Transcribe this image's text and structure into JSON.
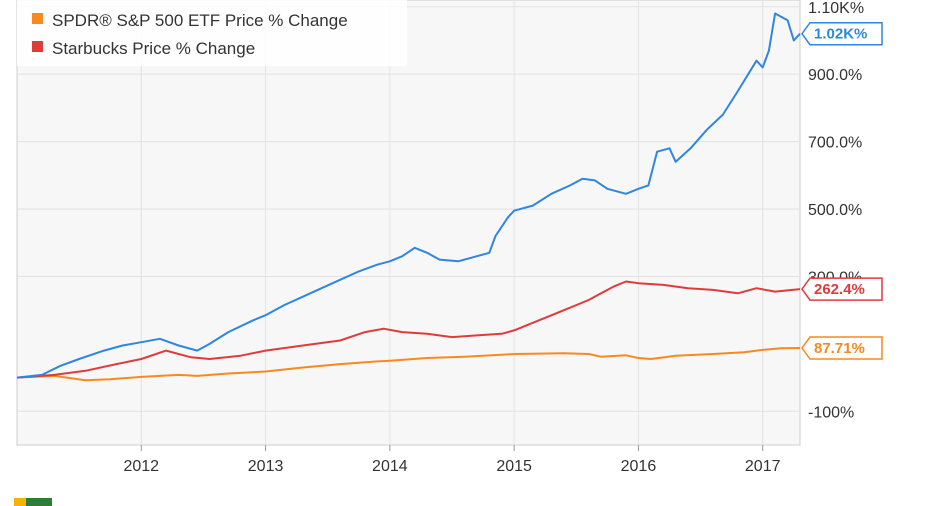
{
  "chart_data": {
    "type": "line",
    "title": "",
    "xlabel": "",
    "ylabel": "",
    "x_ticks": [
      {
        "label": "2012",
        "year": 2012.0
      },
      {
        "label": "2013",
        "year": 2013.0
      },
      {
        "label": "2014",
        "year": 2014.0
      },
      {
        "label": "2015",
        "year": 2015.0
      },
      {
        "label": "2016",
        "year": 2016.0
      },
      {
        "label": "2017",
        "year": 2017.0
      }
    ],
    "y_ticks": [
      {
        "label": "1.10K%",
        "value": 1100
      },
      {
        "label": "900.0%",
        "value": 900
      },
      {
        "label": "700.0%",
        "value": 700
      },
      {
        "label": "500.0%",
        "value": 500
      },
      {
        "label": "300.0%",
        "value": 300
      },
      {
        "label": "-100%",
        "value": -100
      }
    ],
    "xlim": [
      2011.0,
      2017.3
    ],
    "ylim": [
      -200,
      1120
    ],
    "grid": true,
    "legend_position": "top-left",
    "series": [
      {
        "name": "",
        "color": "#2f86e0",
        "end_label": "1.02K%",
        "points": [
          [
            2011.0,
            0
          ],
          [
            2011.2,
            8
          ],
          [
            2011.35,
            35
          ],
          [
            2011.5,
            55
          ],
          [
            2011.7,
            80
          ],
          [
            2011.85,
            95
          ],
          [
            2012.0,
            105
          ],
          [
            2012.15,
            115
          ],
          [
            2012.3,
            95
          ],
          [
            2012.45,
            80
          ],
          [
            2012.55,
            100
          ],
          [
            2012.7,
            135
          ],
          [
            2012.9,
            170
          ],
          [
            2013.0,
            185
          ],
          [
            2013.15,
            215
          ],
          [
            2013.3,
            240
          ],
          [
            2013.45,
            265
          ],
          [
            2013.6,
            290
          ],
          [
            2013.75,
            315
          ],
          [
            2013.9,
            335
          ],
          [
            2014.0,
            345
          ],
          [
            2014.1,
            360
          ],
          [
            2014.2,
            385
          ],
          [
            2014.3,
            370
          ],
          [
            2014.4,
            350
          ],
          [
            2014.55,
            345
          ],
          [
            2014.7,
            360
          ],
          [
            2014.8,
            370
          ],
          [
            2014.85,
            420
          ],
          [
            2014.95,
            475
          ],
          [
            2015.0,
            495
          ],
          [
            2015.15,
            510
          ],
          [
            2015.3,
            545
          ],
          [
            2015.45,
            570
          ],
          [
            2015.55,
            590
          ],
          [
            2015.65,
            585
          ],
          [
            2015.75,
            560
          ],
          [
            2015.9,
            545
          ],
          [
            2016.0,
            560
          ],
          [
            2016.08,
            570
          ],
          [
            2016.15,
            670
          ],
          [
            2016.25,
            680
          ],
          [
            2016.3,
            640
          ],
          [
            2016.42,
            680
          ],
          [
            2016.55,
            735
          ],
          [
            2016.68,
            780
          ],
          [
            2016.8,
            850
          ],
          [
            2016.95,
            940
          ],
          [
            2017.0,
            920
          ],
          [
            2017.05,
            970
          ],
          [
            2017.1,
            1080
          ],
          [
            2017.2,
            1060
          ],
          [
            2017.25,
            1000
          ],
          [
            2017.3,
            1020
          ]
        ]
      },
      {
        "name": "SPDR® S&P 500 ETF Price % Change",
        "color": "#f7891e",
        "end_label": "87.71%",
        "points": [
          [
            2011.0,
            0
          ],
          [
            2011.3,
            5
          ],
          [
            2011.55,
            -8
          ],
          [
            2011.75,
            -5
          ],
          [
            2012.0,
            2
          ],
          [
            2012.3,
            8
          ],
          [
            2012.45,
            5
          ],
          [
            2012.7,
            12
          ],
          [
            2013.0,
            18
          ],
          [
            2013.3,
            30
          ],
          [
            2013.6,
            40
          ],
          [
            2013.9,
            48
          ],
          [
            2014.0,
            50
          ],
          [
            2014.3,
            58
          ],
          [
            2014.6,
            62
          ],
          [
            2014.9,
            68
          ],
          [
            2015.0,
            70
          ],
          [
            2015.4,
            72
          ],
          [
            2015.6,
            70
          ],
          [
            2015.7,
            62
          ],
          [
            2015.9,
            66
          ],
          [
            2016.0,
            58
          ],
          [
            2016.1,
            55
          ],
          [
            2016.3,
            65
          ],
          [
            2016.6,
            70
          ],
          [
            2016.85,
            75
          ],
          [
            2017.0,
            82
          ],
          [
            2017.15,
            87
          ],
          [
            2017.3,
            87.71
          ]
        ]
      },
      {
        "name": "Starbucks Price % Change",
        "color": "#e03b3b",
        "end_label": "262.4%",
        "points": [
          [
            2011.0,
            0
          ],
          [
            2011.3,
            8
          ],
          [
            2011.55,
            20
          ],
          [
            2011.8,
            40
          ],
          [
            2012.0,
            55
          ],
          [
            2012.2,
            80
          ],
          [
            2012.4,
            60
          ],
          [
            2012.55,
            55
          ],
          [
            2012.8,
            65
          ],
          [
            2013.0,
            80
          ],
          [
            2013.3,
            95
          ],
          [
            2013.6,
            110
          ],
          [
            2013.8,
            135
          ],
          [
            2013.95,
            145
          ],
          [
            2014.1,
            135
          ],
          [
            2014.3,
            130
          ],
          [
            2014.5,
            120
          ],
          [
            2014.7,
            125
          ],
          [
            2014.9,
            130
          ],
          [
            2015.0,
            140
          ],
          [
            2015.2,
            170
          ],
          [
            2015.4,
            200
          ],
          [
            2015.6,
            230
          ],
          [
            2015.7,
            250
          ],
          [
            2015.8,
            270
          ],
          [
            2015.9,
            285
          ],
          [
            2016.0,
            280
          ],
          [
            2016.2,
            275
          ],
          [
            2016.4,
            265
          ],
          [
            2016.6,
            260
          ],
          [
            2016.8,
            250
          ],
          [
            2016.95,
            265
          ],
          [
            2017.1,
            255
          ],
          [
            2017.3,
            262.4
          ]
        ]
      }
    ]
  }
}
